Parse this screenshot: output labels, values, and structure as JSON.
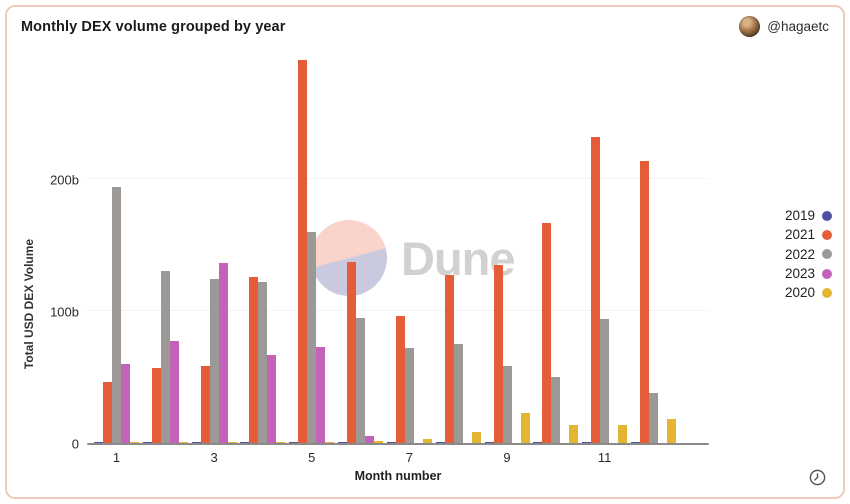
{
  "header": {
    "title": "Monthly DEX volume grouped by year",
    "account_handle": "@hagaetc"
  },
  "watermark": {
    "label": "Dune"
  },
  "chart_data": {
    "type": "bar",
    "title": "Monthly DEX volume grouped by year",
    "xlabel": "Month number",
    "ylabel": "Total USD DEX Volume",
    "unit": "billions USD",
    "x_months": [
      1,
      2,
      3,
      4,
      5,
      6,
      7,
      8,
      9,
      10,
      11,
      12
    ],
    "x_tick_labels_shown": [
      "1",
      "3",
      "5",
      "7",
      "9",
      "11"
    ],
    "ylim": [
      0,
      293
    ],
    "y_ticks": [
      {
        "value": 0,
        "label": "0"
      },
      {
        "value": 100,
        "label": "100b"
      },
      {
        "value": 200,
        "label": "200b"
      }
    ],
    "grid": "horizontal",
    "legend_position": "right",
    "series": [
      {
        "name": "2019",
        "color": "#5150a0",
        "values": [
          0.5,
          0.5,
          0.5,
          0.5,
          0.5,
          0.5,
          0.5,
          0.5,
          0.5,
          0.5,
          0.5,
          0.5
        ]
      },
      {
        "name": "2021",
        "color": "#e55c38",
        "values": [
          46,
          57,
          58,
          126,
          290,
          137,
          96,
          127,
          135,
          167,
          232,
          214
        ]
      },
      {
        "name": "2022",
        "color": "#9c9896",
        "values": [
          194,
          130,
          124,
          122,
          160,
          95,
          72,
          75,
          58,
          50,
          94,
          38
        ]
      },
      {
        "name": "2023",
        "color": "#c262b8",
        "values": [
          60,
          77,
          136,
          67,
          73,
          5,
          null,
          null,
          null,
          null,
          null,
          null
        ]
      },
      {
        "name": "2020",
        "color": "#e2b633",
        "values": [
          1,
          1,
          1,
          1,
          1,
          1.5,
          3,
          8,
          23,
          14,
          14,
          18
        ]
      }
    ]
  }
}
